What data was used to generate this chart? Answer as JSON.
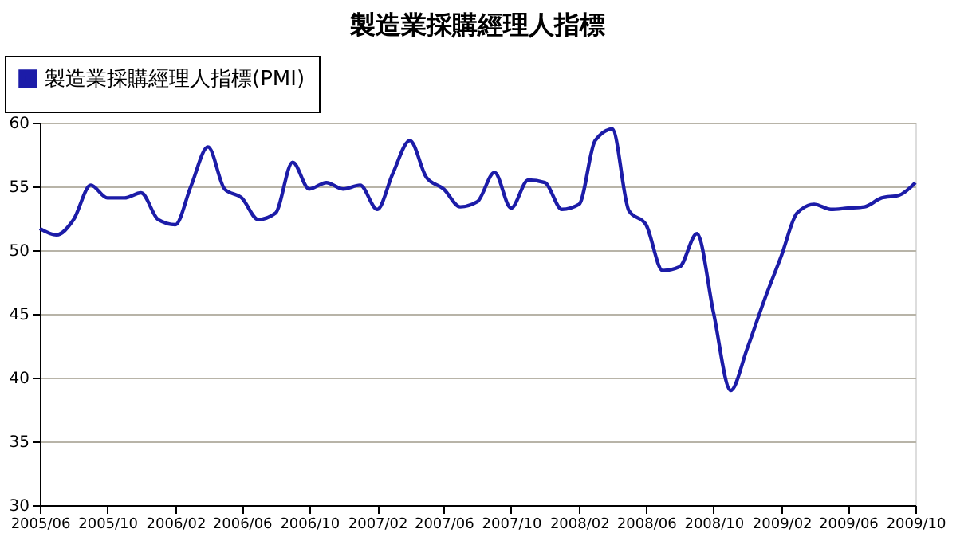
{
  "chart_data": {
    "type": "line",
    "title": "製造業採購經理人指標",
    "x": [
      "2005-06",
      "2005-07",
      "2005-08",
      "2005-09",
      "2005-10",
      "2005-11",
      "2005-12",
      "2006-01",
      "2006-02",
      "2006-03",
      "2006-04",
      "2006-05",
      "2006-06",
      "2006-07",
      "2006-08",
      "2006-09",
      "2006-10",
      "2006-11",
      "2006-12",
      "2007-01",
      "2007-02",
      "2007-03",
      "2007-04",
      "2007-05",
      "2007-06",
      "2007-07",
      "2007-08",
      "2007-09",
      "2007-10",
      "2007-11",
      "2007-12",
      "2008-01",
      "2008-02",
      "2008-03",
      "2008-04",
      "2008-05",
      "2008-06",
      "2008-07",
      "2008-08",
      "2008-09",
      "2008-10",
      "2008-11",
      "2008-12",
      "2009-01",
      "2009-02",
      "2009-03",
      "2009-04",
      "2009-05",
      "2009-06",
      "2009-07",
      "2009-08",
      "2009-09",
      "2009-10"
    ],
    "series": [
      {
        "name": "製造業採購經理人指標(PMI)",
        "color": "#1c1ca8",
        "values": [
          51.7,
          51.2,
          52.4,
          55.1,
          54.1,
          54.1,
          54.5,
          52.4,
          52.0,
          55.0,
          58.1,
          54.8,
          54.1,
          52.4,
          52.9,
          56.9,
          54.8,
          55.3,
          54.8,
          55.1,
          53.2,
          56.0,
          58.6,
          55.7,
          54.8,
          53.4,
          53.8,
          56.1,
          53.3,
          55.5,
          55.3,
          53.2,
          53.6,
          58.6,
          59.5,
          53.1,
          52.0,
          48.4,
          48.7,
          51.3,
          45.1,
          39.0,
          42.3,
          46.1,
          49.6,
          52.9,
          53.6,
          53.2,
          53.3,
          53.4,
          54.1,
          54.3,
          55.3
        ]
      }
    ],
    "xlim": [
      "2005-06",
      "2009-10"
    ],
    "xticks": [
      {
        "value": "2005-06",
        "label": "2005/06"
      },
      {
        "value": "2005-10",
        "label": "2005/10"
      },
      {
        "value": "2006-02",
        "label": "2006/02"
      },
      {
        "value": "2006-06",
        "label": "2006/06"
      },
      {
        "value": "2006-10",
        "label": "2006/10"
      },
      {
        "value": "2007-02",
        "label": "2007/02"
      },
      {
        "value": "2007-06",
        "label": "2007/06"
      },
      {
        "value": "2007-10",
        "label": "2007/10"
      },
      {
        "value": "2008-02",
        "label": "2008/02"
      },
      {
        "value": "2008-06",
        "label": "2008/06"
      },
      {
        "value": "2008-10",
        "label": "2008/10"
      },
      {
        "value": "2009-02",
        "label": "2009/02"
      },
      {
        "value": "2009-06",
        "label": "2009/06"
      },
      {
        "value": "2009-10",
        "label": "2009/10"
      }
    ],
    "ylim": [
      30,
      60
    ],
    "yticks": [
      30,
      35,
      40,
      45,
      50,
      55,
      60
    ],
    "grid": "y",
    "legend": "top left",
    "marker": "none",
    "line_style": "solid"
  }
}
